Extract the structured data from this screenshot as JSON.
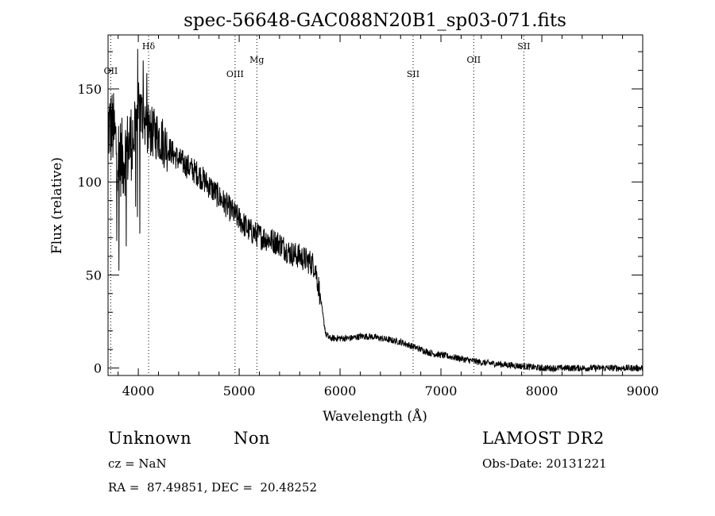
{
  "chart_data": {
    "type": "line",
    "title": "spec-56648-GAC088N20B1_sp03-071.fits",
    "xlabel": "Wavelength (Å)",
    "ylabel": "Flux (relative)",
    "xlim": [
      3700,
      9000
    ],
    "ylim": [
      -4,
      179
    ],
    "xticks": [
      4000,
      5000,
      6000,
      7000,
      8000,
      9000
    ],
    "yticks": [
      0,
      50,
      100,
      150
    ],
    "grid": false,
    "line_markers": [
      {
        "label": "OII",
        "x": 3727
      },
      {
        "label": "Hδ",
        "x": 4102
      },
      {
        "label": "OIII",
        "x": 4959
      },
      {
        "label": "Mg",
        "x": 5175
      },
      {
        "label": "SII",
        "x": 6724
      },
      {
        "label": "OII",
        "x": 7325
      },
      {
        "label": "SII",
        "x": 7822
      }
    ],
    "series": [
      {
        "x": [
          3700,
          3750,
          3800,
          3850,
          3900,
          3950,
          4000,
          4050,
          4100,
          4150,
          4200,
          4300,
          4400,
          4500,
          4600,
          4700,
          4800,
          4900,
          5000,
          5100,
          5200,
          5300,
          5400,
          5500,
          5600,
          5700,
          5750,
          5800,
          5830,
          5860,
          5900,
          6000,
          6100,
          6200,
          6300,
          6400,
          6500,
          6600,
          6700,
          6800,
          6900,
          7000,
          7200,
          7400,
          7600,
          7800,
          8000,
          8200,
          8400,
          8600,
          8800,
          9000
        ],
        "y": [
          130,
          128,
          115,
          112,
          118,
          125,
          140,
          135,
          128,
          126,
          125,
          118,
          112,
          108,
          104,
          98,
          92,
          86,
          80,
          74,
          71,
          69,
          67,
          62,
          60,
          57,
          55,
          40,
          28,
          18,
          16,
          16,
          16,
          17,
          17,
          16,
          15,
          14,
          12,
          10,
          8,
          7,
          5,
          3,
          2,
          1,
          0,
          0,
          0,
          0,
          0,
          0
        ]
      }
    ]
  },
  "info": {
    "object_class": "Unknown",
    "subclass": "Non",
    "survey": "LAMOST DR2",
    "cz": "cz = NaN",
    "obs_date": "Obs-Date: 20131221",
    "coords": "RA =  87.49851, DEC =  20.48252"
  }
}
